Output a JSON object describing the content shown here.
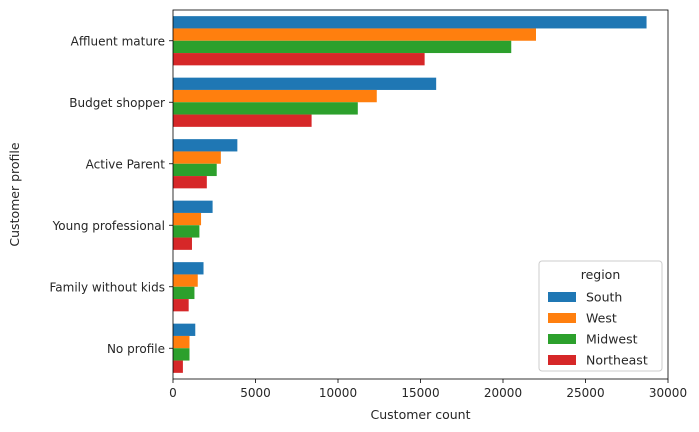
{
  "chart_data": {
    "type": "bar",
    "orientation": "horizontal",
    "categories": [
      "Affluent mature",
      "Budget shopper",
      "Active Parent",
      "Young professional",
      "Family without kids",
      "No profile"
    ],
    "series": [
      {
        "name": "South",
        "color": "#1f77b4",
        "values": [
          28700,
          15950,
          3900,
          2400,
          1850,
          1350
        ]
      },
      {
        "name": "West",
        "color": "#ff7f0e",
        "values": [
          22000,
          12350,
          2900,
          1700,
          1500,
          1000
        ]
      },
      {
        "name": "Midwest",
        "color": "#2ca02c",
        "values": [
          20500,
          11200,
          2650,
          1600,
          1300,
          1000
        ]
      },
      {
        "name": "Northeast",
        "color": "#d62728",
        "values": [
          15250,
          8400,
          2050,
          1150,
          950,
          600
        ]
      }
    ],
    "xlabel": "Customer count",
    "ylabel": "Customer profile",
    "xlim": [
      0,
      30000
    ],
    "xticks": [
      "0",
      "5000",
      "10000",
      "15000",
      "20000",
      "25000",
      "30000"
    ],
    "legend_title": "region",
    "legend_position": "lower-right",
    "grid": false
  }
}
